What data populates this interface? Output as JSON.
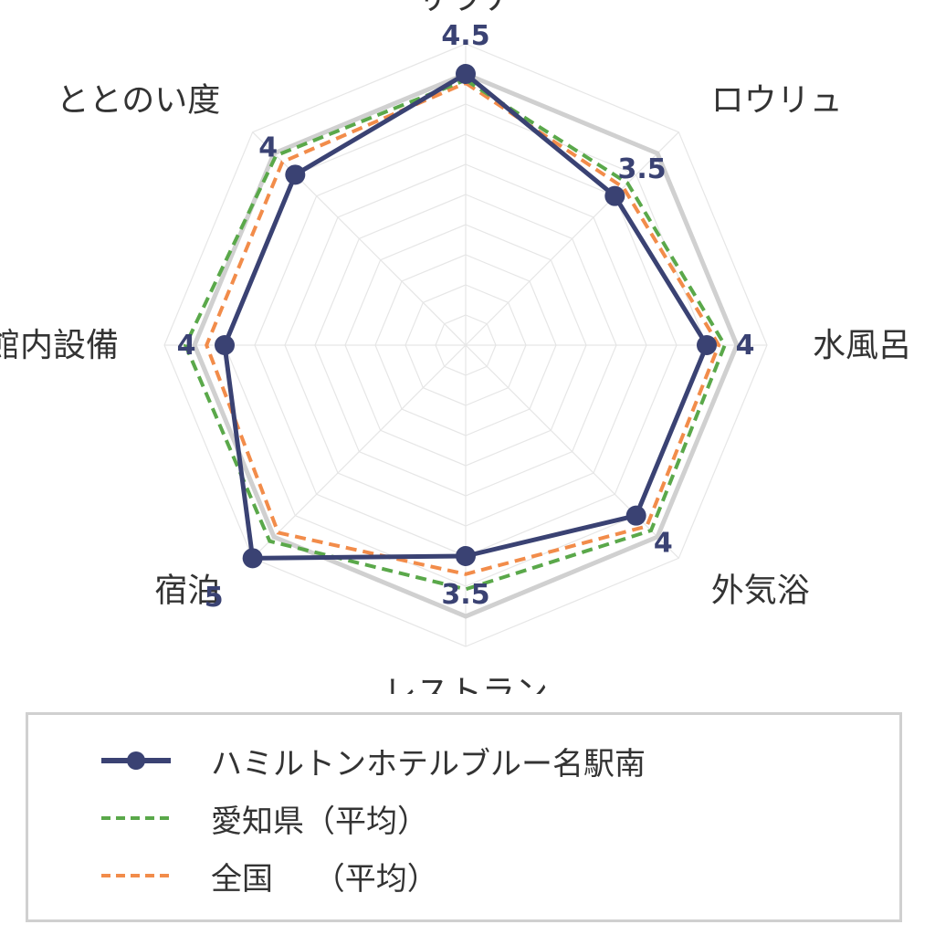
{
  "chart_data": {
    "type": "radar",
    "axes": [
      "サウナ",
      "ロウリュ",
      "水風呂",
      "外気浴",
      "レストラン",
      "宿泊",
      "館内設備",
      "ととのい度"
    ],
    "rmax": 5,
    "grid": true,
    "legend_position": "bottom",
    "series": [
      {
        "name": "ハミルトンホテルブルー名駅南",
        "values": [
          4.5,
          3.5,
          4,
          4,
          3.5,
          5,
          4,
          4
        ],
        "color": "#3a4273",
        "style": "solid-markers",
        "labels": [
          "4.5",
          "3.5",
          "4",
          "4",
          "3.5",
          "5",
          "4",
          "4"
        ]
      },
      {
        "name": "愛知県（平均）",
        "values": [
          4.4,
          3.8,
          4.3,
          4.35,
          4.05,
          4.6,
          4.65,
          4.45
        ],
        "color": "#5aa84a",
        "style": "dashed"
      },
      {
        "name": "全国　（平均）",
        "values": [
          4.35,
          3.7,
          4.2,
          4.25,
          3.8,
          4.4,
          4.3,
          4.3
        ],
        "color": "#f28c4a",
        "style": "dashed"
      }
    ]
  },
  "legend": {
    "item1": "ハミルトンホテルブルー名駅南",
    "item2": "愛知県（平均）",
    "item3": "全国　 （平均）"
  },
  "colors": {
    "grid": "#e6e6e6",
    "outer_ring": "#d0d0d0"
  }
}
